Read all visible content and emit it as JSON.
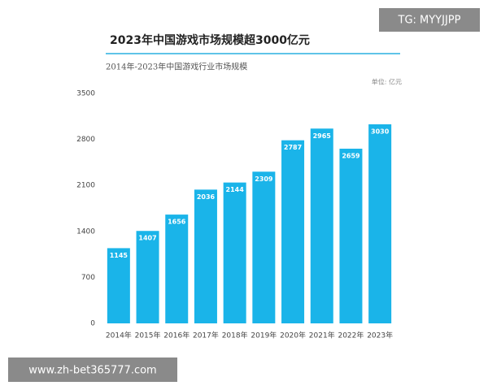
{
  "chart_data": {
    "type": "bar",
    "title": "2023年中国游戏市场规模超3000亿元",
    "subtitle": "2014年-2023年中国游戏行业市场规模",
    "unit_label": "单位: 亿元",
    "categories": [
      "2014年",
      "2015年",
      "2016年",
      "2017年",
      "2018年",
      "2019年",
      "2020年",
      "2021年",
      "2022年",
      "2023年"
    ],
    "values": [
      1145,
      1407,
      1656,
      2036,
      2144,
      2309,
      2787,
      2965,
      2659,
      3030
    ],
    "color": "#1ab4e9",
    "ylim": [
      0,
      3500
    ],
    "yticks": [
      0,
      700,
      1400,
      2100,
      2800,
      3500
    ],
    "grid": false
  },
  "watermarks": [
    "TG: MYYJJPP",
    "www.zh-bet365777.com"
  ]
}
